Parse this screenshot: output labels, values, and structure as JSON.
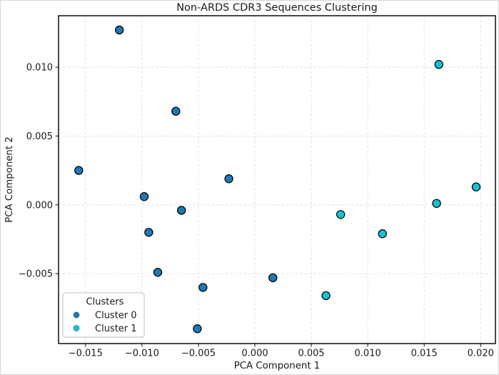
{
  "figure": {
    "background": "#ffffff",
    "frame_color": "#d6d6d6"
  },
  "chart_data": {
    "type": "scatter",
    "title": "Non-ARDS CDR3 Sequences Clustering",
    "xlabel": "PCA Component 1",
    "ylabel": "PCA Component 2",
    "xlim": [
      -0.01739,
      0.02131
    ],
    "ylim": [
      -0.01008,
      0.01374
    ],
    "grid": true,
    "grid_color": "#dcdcdc",
    "spine_color": "#1c1c1c",
    "xticks": [
      -0.015,
      -0.01,
      -0.005,
      0,
      0.005,
      0.01,
      0.015,
      0.02
    ],
    "xtick_labels": [
      "−0.015",
      "−0.010",
      "−0.005",
      "0.000",
      "0.005",
      "0.010",
      "0.015",
      "0.020"
    ],
    "yticks": [
      -0.005,
      0,
      0.005,
      0.01
    ],
    "ytick_labels": [
      "−0.005",
      "0.000",
      "0.005",
      "0.010"
    ],
    "marker": {
      "radius": 5.6,
      "edge_color": "#000000",
      "edge_width": 1.2
    },
    "legend": {
      "title": "Clusters",
      "position": "lower left",
      "border_color": "#cccccc",
      "background": "#ffffff"
    },
    "series": [
      {
        "name": "Cluster 0",
        "color": "#1f77b4",
        "points": [
          [
            -0.012,
            0.0127
          ],
          [
            -0.007,
            0.0068
          ],
          [
            -0.0156,
            0.0025
          ],
          [
            -0.0023,
            0.0019
          ],
          [
            -0.0098,
            0.0006
          ],
          [
            -0.0065,
            -0.0004
          ],
          [
            -0.0094,
            -0.002
          ],
          [
            -0.0086,
            -0.0049
          ],
          [
            -0.0046,
            -0.006
          ],
          [
            -0.0051,
            -0.009
          ],
          [
            0.0016,
            -0.0053
          ]
        ]
      },
      {
        "name": "Cluster 1",
        "color": "#16c0d4",
        "points": [
          [
            0.0063,
            -0.0066
          ],
          [
            0.0076,
            -0.0007
          ],
          [
            0.0113,
            -0.0021
          ],
          [
            0.0161,
            0.0001
          ],
          [
            0.0163,
            0.0102
          ],
          [
            0.0196,
            0.0013
          ]
        ]
      }
    ]
  }
}
